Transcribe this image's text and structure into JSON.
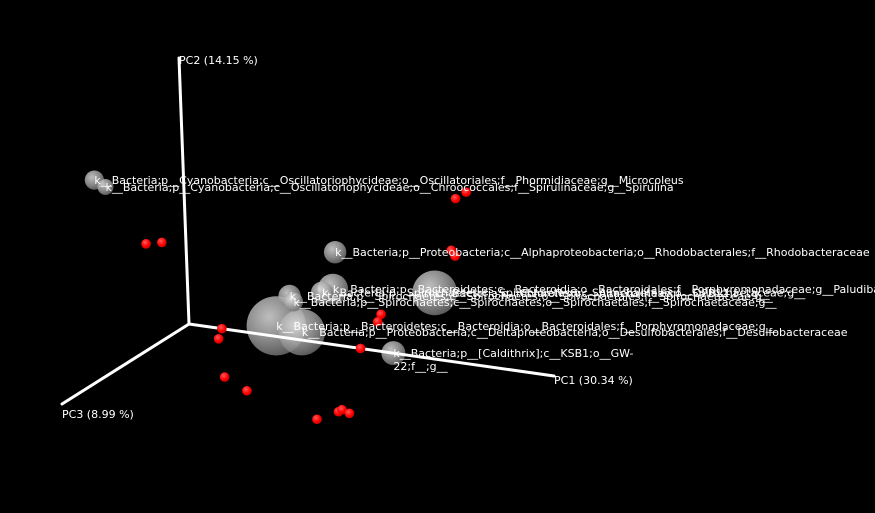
{
  "chart_data": {
    "type": "scatter",
    "projection": "3d",
    "background_color": "#000000",
    "axis_color": "#ffffff",
    "sample_color": "#ff0000",
    "taxon_color": "#c8c8c8",
    "axes": {
      "x": {
        "label": "PC1 (30.34 %)"
      },
      "y": {
        "label": "PC2 (14.15 %)"
      },
      "z": {
        "label": "PC3 (8.99 %)"
      }
    },
    "samples": [
      {
        "pc1": -0.72,
        "pc2": 0.74,
        "pc3": 0.05
      },
      {
        "pc1": -0.72,
        "pc2": 0.7,
        "pc3": 0.05
      },
      {
        "pc1": 0.77,
        "pc2": 0.64,
        "pc3": -0.02
      },
      {
        "pc1": 0.74,
        "pc2": 0.61,
        "pc3": -0.02
      },
      {
        "pc1": 0.73,
        "pc2": 0.42,
        "pc3": 0.0
      },
      {
        "pc1": 0.74,
        "pc2": 0.4,
        "pc3": 0.0
      },
      {
        "pc1": -0.07,
        "pc2": 0.29,
        "pc3": -0.01
      },
      {
        "pc1": -0.11,
        "pc2": 0.28,
        "pc3": 0.0
      },
      {
        "pc1": 0.53,
        "pc2": 0.14,
        "pc3": 0.0
      },
      {
        "pc1": 0.52,
        "pc2": 0.11,
        "pc3": 0.0
      },
      {
        "pc1": 0.47,
        "pc2": 0.0,
        "pc3": 0.0
      },
      {
        "pc1": 0.09,
        "pc2": 0.0,
        "pc3": 0.0
      },
      {
        "pc1": 0.08,
        "pc2": -0.04,
        "pc3": 0.0
      },
      {
        "pc1": 0.2,
        "pc2": -0.07,
        "pc3": 0.3
      },
      {
        "pc1": 0.26,
        "pc2": -0.11,
        "pc3": 0.3
      },
      {
        "pc1": 0.51,
        "pc2": -0.14,
        "pc3": 0.3
      },
      {
        "pc1": 0.52,
        "pc2": -0.13,
        "pc3": 0.3
      },
      {
        "pc1": 0.54,
        "pc2": -0.14,
        "pc3": 0.3
      },
      {
        "pc1": 0.45,
        "pc2": -0.18,
        "pc3": 0.3
      }
    ],
    "taxa": [
      {
        "label": "k__Bacteria;p__Cyanobacteria;c__Oscillatoriophycideae;o__Oscillatoriales;f__Phormidiaceae;g__Microcoleus",
        "pc1": -0.21,
        "pc2": 0.53,
        "pc3": 0.1,
        "size": 0.12
      },
      {
        "label": "k__Bacteria;p__Cyanobacteria;c__Oscillatoriophycideae;o__Chroococcales;f__Spirulinaceae;g__Spirulina",
        "pc1": -0.18,
        "pc2": 0.51,
        "pc3": 0.1,
        "size": 0.1
      },
      {
        "label": "k__Bacteria;p__Proteobacteria;c__Alphaproteobacteria;o__Rhodobacterales;f__Rhodobacteraceae",
        "pc1": 0.41,
        "pc2": 0.35,
        "pc3": 0.0,
        "size": 0.14
      },
      {
        "label": "k__Bacteria;p__Chloroflexi;c__Anaerolineae;o__OPB11;f__;g__",
        "pc1": 0.68,
        "pc2": 0.25,
        "pc3": 0.0,
        "size": 0.28
      },
      {
        "label": "k__Bacteria;p__Bacteroidetes;c__Bacteroidia;o__Bacteroidales;f__Porphyromonadaceae;g__Paludibacter",
        "pc1": 0.4,
        "pc2": 0.21,
        "pc3": 0.0,
        "size": 0.19
      },
      {
        "label": "k__Bacteria;p__Spirochaetes;c__Spirochaetes;o__Spirochaetales;f__Spirochaetaceae;g__",
        "pc1": 0.37,
        "pc2": 0.19,
        "pc3": 0.0,
        "size": 0.14
      },
      {
        "label": "k__Bacteria;p__Spirochaetes;c__Spirochaetes;o__Spirochaetales;f__Spirochaetaceae;g__",
        "pc1": 0.28,
        "pc2": 0.16,
        "pc3": 0.0,
        "size": 0.14
      },
      {
        "label": "k__Bacteria;p__Spirochaetes;c__Spirochaetes;o__Spirochaetales;f__Spirochaetaceae;g__",
        "pc1": 0.29,
        "pc2": 0.14,
        "pc3": 0.0,
        "size": 0.12
      },
      {
        "label": "k__Bacteria;p__Bacteroidetes;c__Bacteroidia;o__Bacteroidales;f__Porphyromonadaceae;g__",
        "pc1": 0.24,
        "pc2": 0.04,
        "pc3": 0.0,
        "size": 0.37
      },
      {
        "label": "k__Bacteria;p__Proteobacteria;c__Deltaproteobacteria;o__Desulfobacterales;f__Desulfobacteraceae",
        "pc1": 0.31,
        "pc2": 0.03,
        "pc3": 0.0,
        "size": 0.29
      },
      {
        "label": "k__Bacteria;p__[Caldithrix];c__KSB1;o__GW-22;f__;g__",
        "pc1": 0.56,
        "pc2": 0.0,
        "pc3": 0.0,
        "size": 0.15
      }
    ]
  }
}
